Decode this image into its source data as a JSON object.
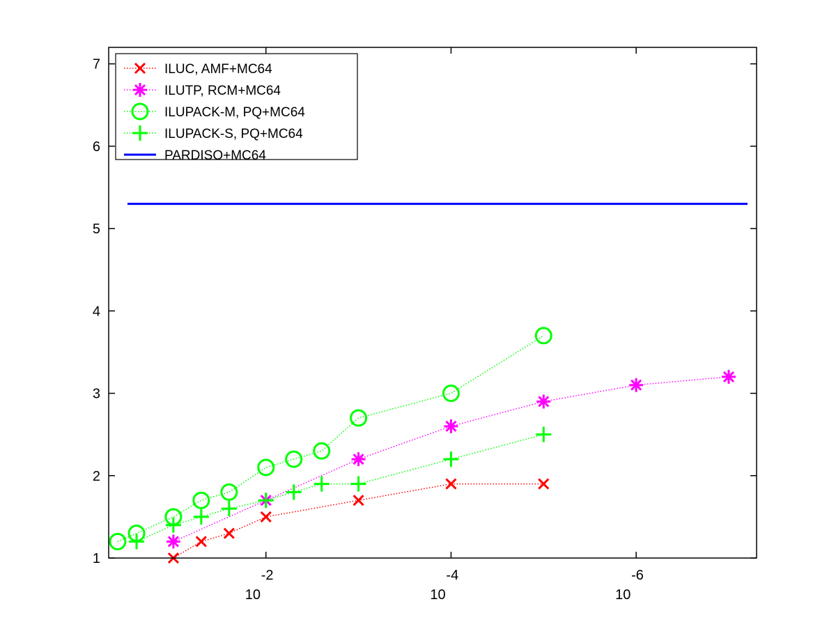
{
  "chart_data": {
    "type": "line",
    "x_scale": "log",
    "x_reversed": true,
    "xlim": [
      0.5,
      5e-08
    ],
    "ylim": [
      1,
      7.2
    ],
    "xticks": [
      {
        "value": 0.01,
        "base": "10",
        "exponent": "-2"
      },
      {
        "value": 0.0001,
        "base": "10",
        "exponent": "-4"
      },
      {
        "value": 1e-06,
        "base": "10",
        "exponent": "-6"
      }
    ],
    "yticks": [
      1,
      2,
      3,
      4,
      5,
      6,
      7
    ],
    "grid": false,
    "legend_position": "top-left",
    "series": [
      {
        "name": "ILUC, AMF+MC64",
        "color": "#ff0000",
        "marker": "x",
        "line_style": "dotted",
        "points": [
          [
            0.1,
            1.0
          ],
          [
            0.05,
            1.2
          ],
          [
            0.025,
            1.3
          ],
          [
            0.01,
            1.5
          ],
          [
            0.001,
            1.7
          ],
          [
            0.0001,
            1.9
          ],
          [
            1e-05,
            1.9
          ]
        ]
      },
      {
        "name": "ILUTP, RCM+MC64",
        "color": "#ff00ff",
        "marker": "asterisk",
        "line_style": "dotted",
        "points": [
          [
            0.1,
            1.2
          ],
          [
            0.01,
            1.7
          ],
          [
            0.001,
            2.2
          ],
          [
            0.0001,
            2.6
          ],
          [
            1e-05,
            2.9
          ],
          [
            1e-06,
            3.1
          ],
          [
            1e-07,
            3.2
          ]
        ]
      },
      {
        "name": "ILUPACK-M, PQ+MC64",
        "color": "#00ff00",
        "marker": "circle",
        "line_style": "dotted",
        "points": [
          [
            0.4,
            1.2
          ],
          [
            0.25,
            1.3
          ],
          [
            0.1,
            1.5
          ],
          [
            0.05,
            1.7
          ],
          [
            0.025,
            1.8
          ],
          [
            0.01,
            2.1
          ],
          [
            0.005,
            2.2
          ],
          [
            0.0025,
            2.3
          ],
          [
            0.001,
            2.7
          ],
          [
            0.0001,
            3.0
          ],
          [
            1e-05,
            3.7
          ]
        ]
      },
      {
        "name": "ILUPACK-S, PQ+MC64",
        "color": "#00ff00",
        "marker": "plus",
        "line_style": "dotted",
        "points": [
          [
            0.25,
            1.2
          ],
          [
            0.1,
            1.4
          ],
          [
            0.05,
            1.5
          ],
          [
            0.025,
            1.6
          ],
          [
            0.01,
            1.7
          ],
          [
            0.005,
            1.8
          ],
          [
            0.0025,
            1.9
          ],
          [
            0.001,
            1.9
          ],
          [
            0.0001,
            2.2
          ],
          [
            1e-05,
            2.5
          ]
        ]
      },
      {
        "name": "PARDISO+MC64",
        "color": "#0000ff",
        "marker": "none",
        "line_style": "solid",
        "constant": 5.3
      }
    ]
  }
}
